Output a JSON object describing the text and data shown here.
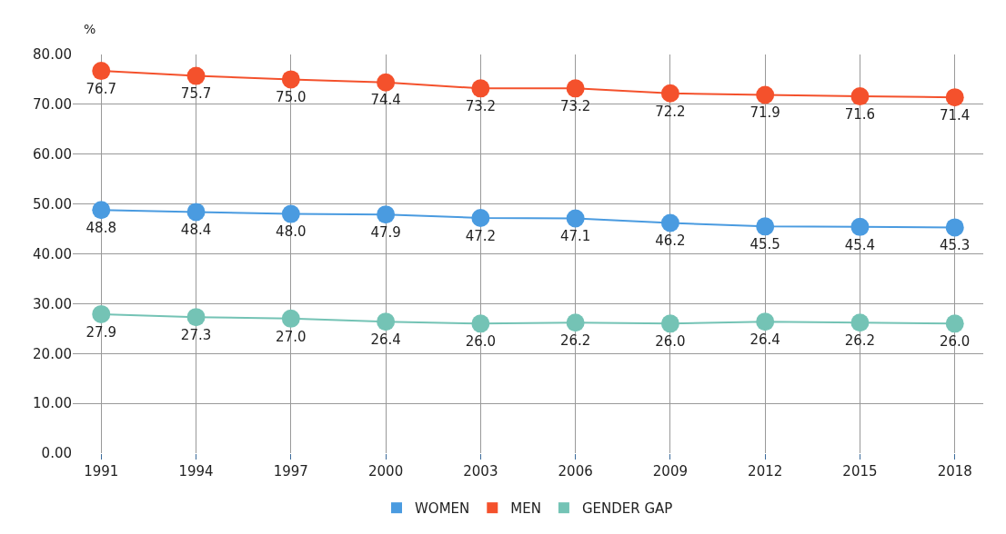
{
  "chart_data": {
    "type": "line",
    "ylabel": "%",
    "categories": [
      "1991",
      "1994",
      "1997",
      "2000",
      "2003",
      "2006",
      "2009",
      "2012",
      "2015",
      "2018"
    ],
    "series": [
      {
        "name": "WOMEN",
        "color": "#4a9be0",
        "values": [
          48.8,
          48.4,
          48.0,
          47.9,
          47.2,
          47.1,
          46.2,
          45.5,
          45.4,
          45.3
        ],
        "value_labels": [
          "48.8",
          "48.4",
          "48.0",
          "47.9",
          "47.2",
          "47.1",
          "46.2",
          "45.5",
          "45.4",
          "45.3"
        ]
      },
      {
        "name": "MEN",
        "color": "#f4512c",
        "values": [
          76.7,
          75.7,
          75.0,
          74.4,
          73.2,
          73.2,
          72.2,
          71.9,
          71.6,
          71.4
        ],
        "value_labels": [
          "76.7",
          "75.7",
          "75.0",
          "74.4",
          "73.2",
          "73.2",
          "72.2",
          "71.9",
          "71.6",
          "71.4"
        ]
      },
      {
        "name": "GENDER GAP",
        "color": "#74c3b5",
        "values": [
          27.9,
          27.3,
          27.0,
          26.4,
          26.0,
          26.2,
          26.0,
          26.4,
          26.2,
          26.0
        ],
        "value_labels": [
          "27.9",
          "27.3",
          "27.0",
          "26.4",
          "26.0",
          "26.2",
          "26.0",
          "26.4",
          "26.2",
          "26.0"
        ]
      }
    ],
    "ylim": [
      0,
      80
    ],
    "yticks": [
      {
        "value": 0,
        "label": "0.00"
      },
      {
        "value": 10,
        "label": "10.00"
      },
      {
        "value": 20,
        "label": "20.00"
      },
      {
        "value": 30,
        "label": "30.00"
      },
      {
        "value": 40,
        "label": "40.00"
      },
      {
        "value": 50,
        "label": "50.00"
      },
      {
        "value": 60,
        "label": "60.00"
      },
      {
        "value": 70,
        "label": "70.00"
      },
      {
        "value": 80,
        "label": "80.00"
      }
    ],
    "grid": true,
    "legend": "bottom",
    "marker": "circle",
    "line_style": "solid"
  }
}
